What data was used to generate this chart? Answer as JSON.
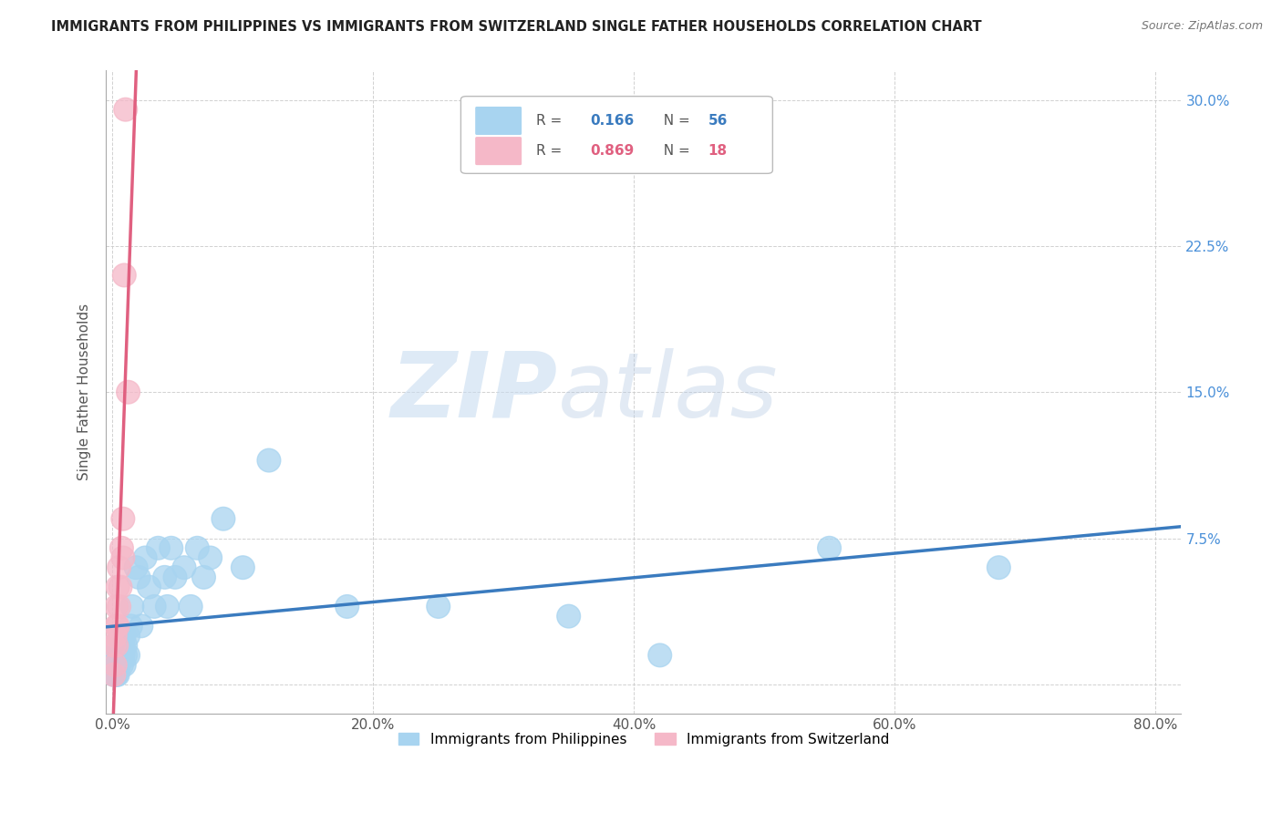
{
  "title": "IMMIGRANTS FROM PHILIPPINES VS IMMIGRANTS FROM SWITZERLAND SINGLE FATHER HOUSEHOLDS CORRELATION CHART",
  "source": "Source: ZipAtlas.com",
  "ylabel": "Single Father Households",
  "xlim": [
    -0.005,
    0.82
  ],
  "ylim": [
    -0.015,
    0.315
  ],
  "xticks": [
    0.0,
    0.2,
    0.4,
    0.6,
    0.8
  ],
  "yticks": [
    0.0,
    0.075,
    0.15,
    0.225,
    0.3
  ],
  "xtick_labels": [
    "0.0%",
    "20.0%",
    "40.0%",
    "60.0%",
    "80.0%"
  ],
  "ytick_labels_right": [
    "",
    "7.5%",
    "15.0%",
    "22.5%",
    "30.0%"
  ],
  "philippines_color": "#a8d4f0",
  "switzerland_color": "#f5b8c8",
  "philippines_R": 0.166,
  "philippines_N": 56,
  "switzerland_R": 0.869,
  "switzerland_N": 18,
  "philippines_line_color": "#3a7bbf",
  "switzerland_line_color": "#e06080",
  "legend_label_1": "Immigrants from Philippines",
  "legend_label_2": "Immigrants from Switzerland",
  "watermark_zip": "ZIP",
  "watermark_atlas": "atlas",
  "background_color": "#ffffff",
  "phil_x": [
    0.001,
    0.001,
    0.001,
    0.002,
    0.002,
    0.002,
    0.002,
    0.003,
    0.003,
    0.003,
    0.003,
    0.004,
    0.004,
    0.004,
    0.005,
    0.005,
    0.005,
    0.006,
    0.006,
    0.007,
    0.007,
    0.008,
    0.008,
    0.009,
    0.009,
    0.01,
    0.01,
    0.012,
    0.012,
    0.014,
    0.015,
    0.018,
    0.02,
    0.022,
    0.025,
    0.028,
    0.032,
    0.035,
    0.04,
    0.042,
    0.045,
    0.048,
    0.055,
    0.06,
    0.065,
    0.07,
    0.075,
    0.085,
    0.1,
    0.12,
    0.18,
    0.25,
    0.35,
    0.42,
    0.55,
    0.68
  ],
  "phil_y": [
    0.02,
    0.01,
    0.005,
    0.015,
    0.01,
    0.005,
    0.02,
    0.015,
    0.01,
    0.005,
    0.02,
    0.015,
    0.01,
    0.005,
    0.02,
    0.015,
    0.01,
    0.02,
    0.015,
    0.025,
    0.01,
    0.02,
    0.015,
    0.025,
    0.01,
    0.02,
    0.015,
    0.025,
    0.015,
    0.03,
    0.04,
    0.06,
    0.055,
    0.03,
    0.065,
    0.05,
    0.04,
    0.07,
    0.055,
    0.04,
    0.07,
    0.055,
    0.06,
    0.04,
    0.07,
    0.055,
    0.065,
    0.085,
    0.06,
    0.115,
    0.04,
    0.04,
    0.035,
    0.015,
    0.07,
    0.06
  ],
  "swiss_x": [
    0.001,
    0.001,
    0.002,
    0.002,
    0.003,
    0.003,
    0.003,
    0.004,
    0.004,
    0.005,
    0.005,
    0.006,
    0.007,
    0.008,
    0.008,
    0.009,
    0.01,
    0.012
  ],
  "swiss_y": [
    0.005,
    0.02,
    0.01,
    0.025,
    0.02,
    0.03,
    0.04,
    0.03,
    0.05,
    0.04,
    0.06,
    0.05,
    0.07,
    0.065,
    0.085,
    0.21,
    0.295,
    0.15
  ]
}
